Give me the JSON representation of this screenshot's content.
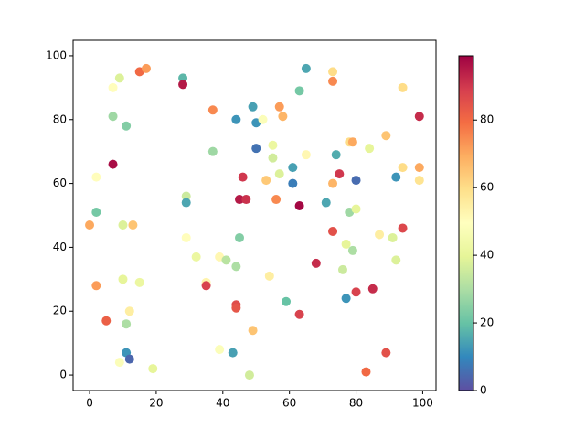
{
  "chart_data": {
    "type": "scatter",
    "x": [
      0,
      2,
      2,
      2,
      5,
      7,
      7,
      7,
      9,
      9,
      10,
      10,
      11,
      11,
      11,
      12,
      12,
      13,
      15,
      15,
      17,
      19,
      28,
      28,
      29,
      29,
      29,
      32,
      35,
      35,
      37,
      37,
      39,
      39,
      41,
      43,
      44,
      44,
      44,
      44,
      45,
      45,
      46,
      47,
      48,
      49,
      49,
      50,
      50,
      52,
      53,
      54,
      55,
      55,
      56,
      57,
      57,
      58,
      59,
      61,
      61,
      63,
      63,
      63,
      65,
      65,
      68,
      71,
      73,
      73,
      73,
      73,
      74,
      75,
      76,
      77,
      77,
      78,
      78,
      79,
      79,
      80,
      80,
      80,
      83,
      84,
      85,
      87,
      89,
      89,
      91,
      92,
      92,
      94,
      94,
      94,
      99,
      99,
      99
    ],
    "y": [
      47,
      62,
      51,
      28,
      17,
      90,
      81,
      66,
      93,
      4,
      47,
      30,
      78,
      16,
      7,
      5,
      20,
      47,
      95,
      29,
      96,
      2,
      93,
      91,
      56,
      54,
      43,
      37,
      29,
      28,
      83,
      70,
      37,
      8,
      36,
      7,
      80,
      34,
      22,
      21,
      55,
      43,
      62,
      55,
      0,
      84,
      14,
      79,
      71,
      80,
      61,
      31,
      72,
      68,
      55,
      84,
      63,
      81,
      23,
      65,
      60,
      89,
      53,
      19,
      96,
      69,
      35,
      54,
      95,
      92,
      60,
      45,
      69,
      63,
      33,
      41,
      24,
      73,
      51,
      73,
      39,
      52,
      26,
      61,
      1,
      71,
      27,
      44,
      75,
      7,
      43,
      62,
      36,
      90,
      65,
      46,
      81,
      65,
      61
    ],
    "c": [
      70,
      50,
      22,
      72,
      82,
      50,
      28,
      97,
      38,
      48,
      38,
      40,
      24,
      30,
      12,
      4,
      55,
      65,
      80,
      42,
      72,
      40,
      18,
      95,
      35,
      15,
      50,
      42,
      53,
      88,
      75,
      28,
      52,
      48,
      32,
      14,
      12,
      30,
      86,
      84,
      95,
      24,
      90,
      91,
      36,
      14,
      65,
      12,
      6,
      48,
      64,
      55,
      42,
      36,
      75,
      72,
      38,
      68,
      20,
      14,
      8,
      22,
      98,
      88,
      15,
      52,
      92,
      15,
      60,
      75,
      68,
      85,
      16,
      90,
      35,
      40,
      12,
      60,
      28,
      70,
      30,
      40,
      88,
      5,
      80,
      40,
      92,
      55,
      65,
      85,
      38,
      12,
      38,
      60,
      60,
      87,
      92,
      70,
      58
    ],
    "colormap": [
      "#5e4fa2",
      "#3288bd",
      "#66c2a5",
      "#abdda4",
      "#e6f598",
      "#ffffbf",
      "#fee08b",
      "#fdae61",
      "#f46d43",
      "#d53e4f",
      "#9e0142"
    ],
    "clim": [
      0,
      99
    ],
    "cticks": [
      0,
      20,
      40,
      60,
      80
    ],
    "xlim": [
      -4.95,
      104.0
    ],
    "ylim": [
      -4.85,
      104.85
    ],
    "xticks": [
      0,
      20,
      40,
      60,
      80,
      100
    ],
    "yticks": [
      0,
      20,
      40,
      60,
      80,
      100
    ]
  }
}
